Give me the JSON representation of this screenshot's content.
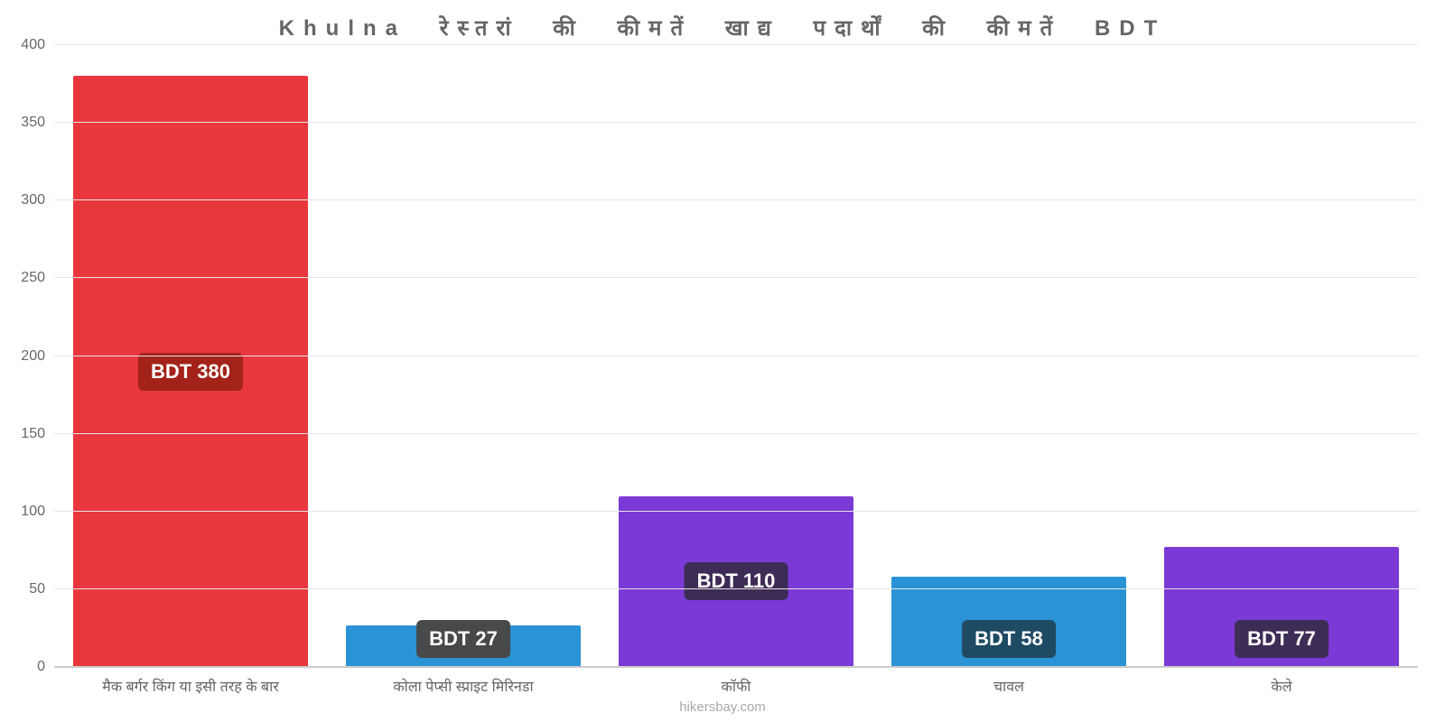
{
  "chart": {
    "type": "bar",
    "title": "Khulna रेस्तरां की कीमतें खाद्य पदार्थों की कीमतें BDT",
    "title_fontsize": 24,
    "title_color": "#666666",
    "background_color": "#ffffff",
    "grid_color": "#e6e6e6",
    "axis_color": "#cccccc",
    "label_color": "#666666",
    "label_fontsize": 16,
    "badge_fontsize": 22,
    "ylim_min": 0,
    "ylim_max": 400,
    "ytick_step": 50,
    "yticks": [
      0,
      50,
      100,
      150,
      200,
      250,
      300,
      350,
      400
    ],
    "bar_width_pct": 86,
    "categories": [
      "मैक बर्गर किंग या इसी तरह के बार",
      "कोला पेप्सी स्प्राइट मिरिनडा",
      "कॉफी",
      "चावल",
      "केले"
    ],
    "values": [
      380,
      27,
      110,
      58,
      77
    ],
    "value_labels": [
      "BDT 380",
      "BDT 27",
      "BDT 110",
      "BDT 58",
      "BDT 77"
    ],
    "bar_colors": [
      "#e8373d",
      "#2a93d5",
      "#7b39d6",
      "#2a93d5",
      "#7b39d6"
    ],
    "badge_bg_colors": [
      "#a3221a",
      "#48494b",
      "#3d2c55",
      "#1f4a63",
      "#3d2c55"
    ],
    "attribution": "hikersbay.com",
    "attribution_color": "#aaaaaa"
  }
}
